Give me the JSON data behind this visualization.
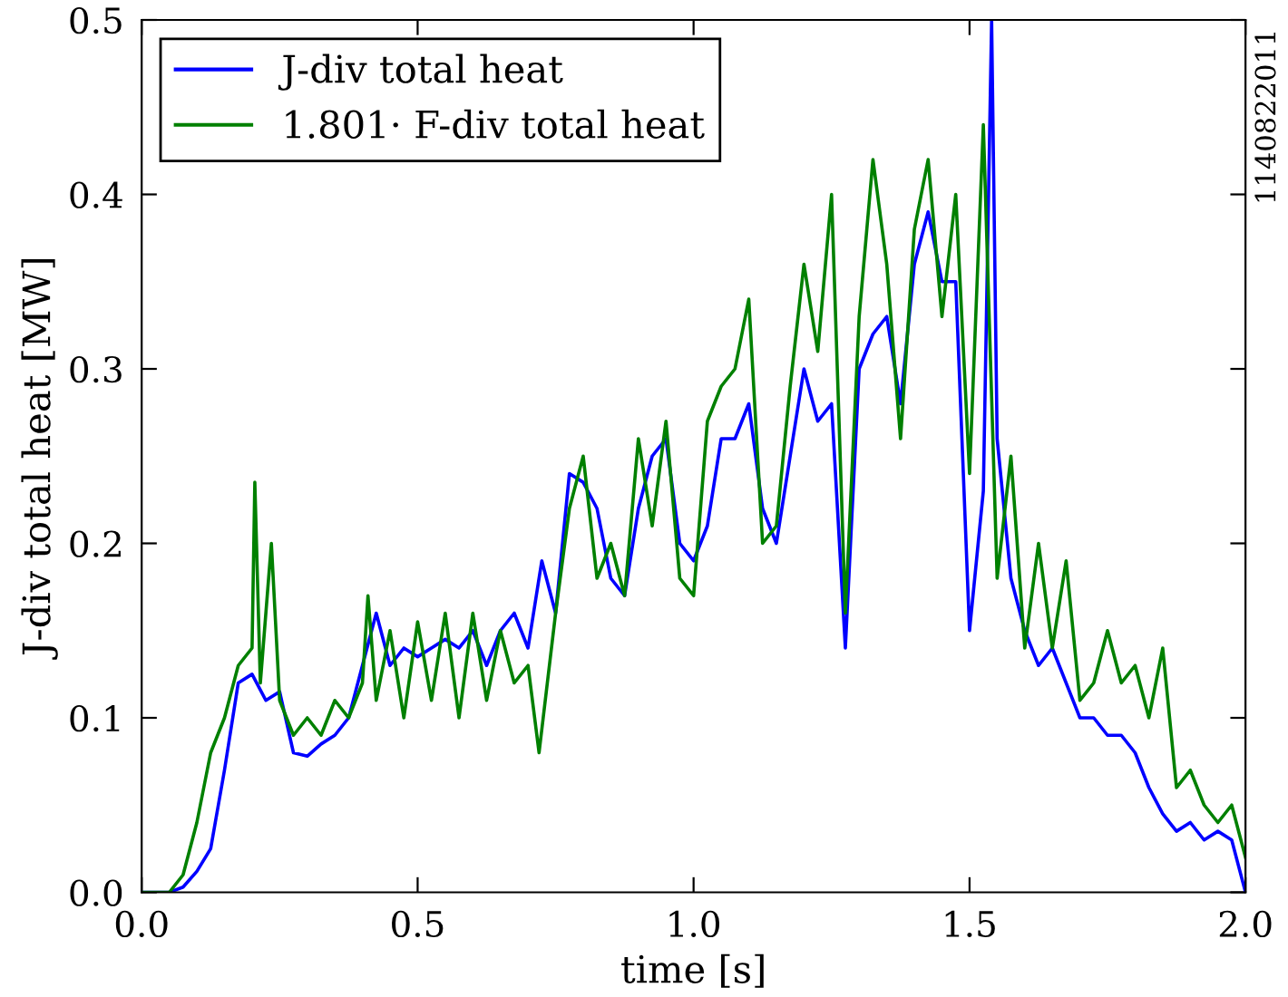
{
  "chart_data": {
    "type": "line",
    "xlabel": "time [s]",
    "ylabel": "J-div total heat [MW]",
    "annotations": [
      "1140822011"
    ],
    "xlim": [
      0.0,
      2.0
    ],
    "xticks": [
      {
        "value": 0,
        "label": "0.0"
      },
      0.5,
      {
        "value": 1,
        "label": "1.0"
      },
      1.5,
      {
        "value": 2,
        "label": "2.0"
      }
    ],
    "ylim": [
      0.0,
      0.5
    ],
    "yticks": [
      {
        "value": 0,
        "label": "0.0"
      },
      0.1,
      0.2,
      0.3,
      0.4,
      0.5
    ],
    "grid": false,
    "legend": "top left",
    "marker": "none",
    "line_style": "solid",
    "series": [
      {
        "name": "J-div total heat",
        "color": "#0000ff",
        "x": [
          0,
          0.025,
          0.05,
          0.075,
          0.1,
          0.125,
          0.15,
          0.175,
          0.2,
          0.225,
          0.25,
          0.275,
          0.3,
          0.325,
          0.35,
          0.375,
          0.4,
          0.425,
          0.45,
          0.475,
          0.5,
          0.525,
          0.55,
          0.575,
          0.6,
          0.625,
          0.65,
          0.675,
          0.7,
          0.725,
          0.75,
          0.775,
          0.8,
          0.825,
          0.85,
          0.875,
          0.9,
          0.925,
          0.95,
          0.975,
          1.0,
          1.025,
          1.05,
          1.075,
          1.1,
          1.125,
          1.15,
          1.175,
          1.2,
          1.225,
          1.25,
          1.275,
          1.3,
          1.325,
          1.35,
          1.375,
          1.4,
          1.425,
          1.45,
          1.475,
          1.5,
          1.525,
          1.54,
          1.55,
          1.575,
          1.6,
          1.625,
          1.65,
          1.675,
          1.7,
          1.725,
          1.75,
          1.775,
          1.8,
          1.825,
          1.85,
          1.875,
          1.9,
          1.925,
          1.95,
          1.975,
          2.0
        ],
        "values": [
          0,
          0,
          0,
          0.003,
          0.012,
          0.025,
          0.07,
          0.12,
          0.125,
          0.11,
          0.115,
          0.08,
          0.078,
          0.085,
          0.09,
          0.1,
          0.13,
          0.16,
          0.13,
          0.14,
          0.135,
          0.14,
          0.145,
          0.14,
          0.15,
          0.13,
          0.15,
          0.16,
          0.14,
          0.19,
          0.16,
          0.24,
          0.235,
          0.22,
          0.18,
          0.17,
          0.22,
          0.25,
          0.26,
          0.2,
          0.19,
          0.21,
          0.26,
          0.26,
          0.28,
          0.22,
          0.2,
          0.25,
          0.3,
          0.27,
          0.28,
          0.14,
          0.3,
          0.32,
          0.33,
          0.28,
          0.36,
          0.39,
          0.35,
          0.35,
          0.15,
          0.23,
          0.5,
          0.26,
          0.18,
          0.15,
          0.13,
          0.14,
          0.12,
          0.1,
          0.1,
          0.09,
          0.09,
          0.08,
          0.06,
          0.045,
          0.035,
          0.04,
          0.03,
          0.035,
          0.03,
          0.0
        ]
      },
      {
        "name": "1.801· F-div total heat",
        "color": "#008000",
        "x": [
          0,
          0.05,
          0.075,
          0.1,
          0.125,
          0.15,
          0.175,
          0.2,
          0.205,
          0.215,
          0.235,
          0.25,
          0.275,
          0.3,
          0.325,
          0.35,
          0.375,
          0.4,
          0.41,
          0.425,
          0.45,
          0.475,
          0.5,
          0.525,
          0.55,
          0.575,
          0.6,
          0.625,
          0.65,
          0.675,
          0.7,
          0.72,
          0.75,
          0.775,
          0.8,
          0.825,
          0.85,
          0.875,
          0.9,
          0.925,
          0.95,
          0.975,
          1.0,
          1.025,
          1.05,
          1.075,
          1.1,
          1.125,
          1.15,
          1.175,
          1.2,
          1.225,
          1.25,
          1.275,
          1.3,
          1.325,
          1.35,
          1.375,
          1.4,
          1.425,
          1.45,
          1.475,
          1.5,
          1.525,
          1.55,
          1.575,
          1.6,
          1.625,
          1.65,
          1.675,
          1.7,
          1.725,
          1.75,
          1.775,
          1.8,
          1.825,
          1.85,
          1.875,
          1.9,
          1.925,
          1.95,
          1.975,
          2.0
        ],
        "values": [
          0,
          0,
          0.01,
          0.04,
          0.08,
          0.1,
          0.13,
          0.14,
          0.235,
          0.12,
          0.2,
          0.11,
          0.09,
          0.1,
          0.09,
          0.11,
          0.1,
          0.12,
          0.17,
          0.11,
          0.15,
          0.1,
          0.155,
          0.11,
          0.16,
          0.1,
          0.16,
          0.11,
          0.15,
          0.12,
          0.13,
          0.08,
          0.16,
          0.22,
          0.25,
          0.18,
          0.2,
          0.17,
          0.26,
          0.21,
          0.27,
          0.18,
          0.17,
          0.27,
          0.29,
          0.3,
          0.34,
          0.2,
          0.21,
          0.29,
          0.36,
          0.31,
          0.4,
          0.16,
          0.33,
          0.42,
          0.36,
          0.26,
          0.38,
          0.42,
          0.33,
          0.4,
          0.24,
          0.44,
          0.18,
          0.25,
          0.14,
          0.2,
          0.14,
          0.19,
          0.11,
          0.12,
          0.15,
          0.12,
          0.13,
          0.1,
          0.14,
          0.06,
          0.07,
          0.05,
          0.04,
          0.05,
          0.02
        ]
      }
    ]
  }
}
